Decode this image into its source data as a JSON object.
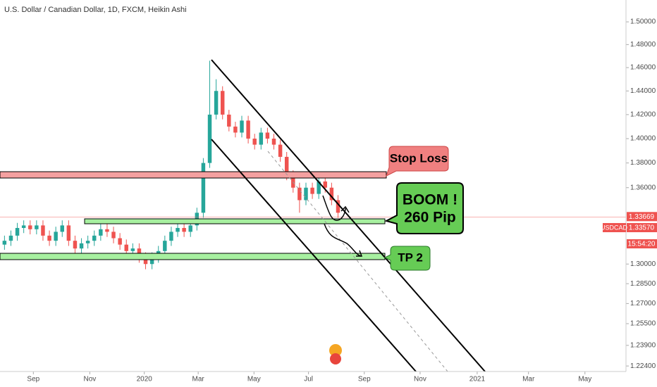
{
  "chart_data": {
    "type": "candlestick",
    "title": "U.S. Dollar / Canadian Dollar, 1D, FXCM, Heikin Ashi",
    "log_scale": true,
    "up_color": "#26a69a",
    "down_color": "#ef5350",
    "x": [
      0,
      1,
      2,
      3,
      4,
      5,
      6,
      7,
      8,
      9,
      10,
      11,
      12,
      13,
      14,
      15,
      16,
      17,
      18,
      19,
      20,
      21,
      22,
      23,
      24,
      25,
      26,
      27,
      28,
      29,
      30,
      31,
      32,
      33,
      34,
      35,
      36,
      37,
      38,
      39,
      40,
      41,
      42,
      43,
      44,
      45,
      46,
      47,
      48,
      49,
      50,
      51,
      52
    ],
    "open": [
      1.315,
      1.318,
      1.322,
      1.328,
      1.33,
      1.327,
      1.33,
      1.322,
      1.318,
      1.325,
      1.33,
      1.318,
      1.312,
      1.316,
      1.318,
      1.322,
      1.327,
      1.325,
      1.32,
      1.315,
      1.31,
      1.312,
      1.305,
      1.3,
      1.305,
      1.31,
      1.318,
      1.325,
      1.328,
      1.325,
      1.33,
      1.34,
      1.38,
      1.42,
      1.44,
      1.42,
      1.41,
      1.405,
      1.415,
      1.4,
      1.395,
      1.405,
      1.4,
      1.395,
      1.385,
      1.37,
      1.36,
      1.35,
      1.36,
      1.355,
      1.365,
      1.36,
      1.35
    ],
    "high": [
      1.322,
      1.326,
      1.332,
      1.334,
      1.334,
      1.334,
      1.334,
      1.326,
      1.329,
      1.334,
      1.334,
      1.322,
      1.32,
      1.322,
      1.326,
      1.331,
      1.331,
      1.329,
      1.324,
      1.319,
      1.316,
      1.316,
      1.309,
      1.309,
      1.314,
      1.322,
      1.329,
      1.332,
      1.332,
      1.334,
      1.344,
      1.384,
      1.466,
      1.45,
      1.444,
      1.424,
      1.414,
      1.419,
      1.419,
      1.404,
      1.409,
      1.409,
      1.404,
      1.399,
      1.389,
      1.374,
      1.364,
      1.364,
      1.364,
      1.372,
      1.369,
      1.364,
      1.354
    ],
    "low": [
      1.311,
      1.314,
      1.318,
      1.324,
      1.323,
      1.323,
      1.318,
      1.314,
      1.314,
      1.321,
      1.314,
      1.308,
      1.308,
      1.312,
      1.314,
      1.318,
      1.321,
      1.316,
      1.311,
      1.306,
      1.306,
      1.301,
      1.296,
      1.296,
      1.301,
      1.306,
      1.314,
      1.321,
      1.321,
      1.321,
      1.326,
      1.336,
      1.376,
      1.416,
      1.416,
      1.406,
      1.401,
      1.401,
      1.396,
      1.391,
      1.391,
      1.396,
      1.391,
      1.381,
      1.366,
      1.356,
      1.34,
      1.346,
      1.351,
      1.351,
      1.356,
      1.346,
      1.336
    ],
    "close": [
      1.318,
      1.322,
      1.328,
      1.33,
      1.327,
      1.33,
      1.322,
      1.318,
      1.325,
      1.33,
      1.318,
      1.312,
      1.316,
      1.318,
      1.322,
      1.327,
      1.325,
      1.32,
      1.315,
      1.31,
      1.312,
      1.305,
      1.3,
      1.305,
      1.31,
      1.318,
      1.325,
      1.328,
      1.325,
      1.33,
      1.34,
      1.38,
      1.42,
      1.44,
      1.42,
      1.41,
      1.405,
      1.415,
      1.4,
      1.395,
      1.405,
      1.4,
      1.395,
      1.385,
      1.37,
      1.36,
      1.35,
      1.36,
      1.355,
      1.365,
      1.36,
      1.35,
      1.34
    ],
    "xlim": [
      -0.7,
      96.9
    ],
    "xticks": [
      {
        "value": 4.5,
        "label": "Sep"
      },
      {
        "value": 13.3,
        "label": "Nov"
      },
      {
        "value": 21.8,
        "label": "2020"
      },
      {
        "value": 30.2,
        "label": "Mar"
      },
      {
        "value": 38.9,
        "label": "May"
      },
      {
        "value": 47.4,
        "label": "Jul"
      },
      {
        "value": 56.1,
        "label": "Sep"
      },
      {
        "value": 64.8,
        "label": "Nov"
      },
      {
        "value": 73.7,
        "label": "2021"
      },
      {
        "value": 81.7,
        "label": "Mar"
      },
      {
        "value": 90.5,
        "label": "May"
      }
    ],
    "ylim": [
      1.22,
      1.5195
    ],
    "yticks": [
      {
        "value": 1.5,
        "label": "1.50000"
      },
      {
        "value": 1.48,
        "label": "1.48000"
      },
      {
        "value": 1.46,
        "label": "1.46000"
      },
      {
        "value": 1.44,
        "label": "1.44000"
      },
      {
        "value": 1.42,
        "label": "1.42000"
      },
      {
        "value": 1.4,
        "label": "1.40000"
      },
      {
        "value": 1.38,
        "label": "1.38000"
      },
      {
        "value": 1.36,
        "label": "1.36000"
      },
      {
        "value": 1.3,
        "label": "1.30000"
      },
      {
        "value": 1.285,
        "label": "1.28500"
      },
      {
        "value": 1.27,
        "label": "1.27000"
      },
      {
        "value": 1.255,
        "label": "1.25500"
      },
      {
        "value": 1.239,
        "label": "1.23900"
      },
      {
        "value": 1.224,
        "label": "1.22400"
      }
    ],
    "current_price": {
      "value": 1.33669,
      "label": "1.33669"
    },
    "symbol_tag": {
      "symbol": "USDCAD",
      "price": "1.33570",
      "countdown": "15:54:20"
    },
    "annotations": {
      "stop_loss": "Stop Loss",
      "boom_line1": "BOOM !",
      "boom_line2": "260 Pip",
      "tp2": "TP 2"
    }
  }
}
